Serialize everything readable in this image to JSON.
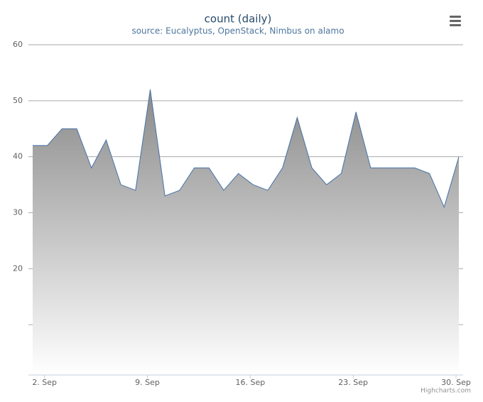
{
  "chart_data": {
    "type": "area",
    "title": "count (daily)",
    "subtitle": "source: Eucalyptus, OpenStack, Nimbus on alamo",
    "credit": "Highcharts.com",
    "categories": [
      null,
      "2. Sep",
      null,
      null,
      null,
      null,
      null,
      null,
      "9. Sep",
      null,
      null,
      null,
      null,
      null,
      null,
      "16. Sep",
      null,
      null,
      null,
      null,
      null,
      null,
      "23. Sep",
      null,
      null,
      null,
      null,
      null,
      null,
      "30. Sep"
    ],
    "values": [
      42,
      42,
      45,
      45,
      38,
      43,
      35,
      34,
      52,
      33,
      34,
      38,
      38,
      34,
      37,
      35,
      34,
      38,
      47,
      38,
      35,
      37,
      48,
      38,
      38,
      38,
      38,
      37,
      31,
      40
    ],
    "color": "#4572a7",
    "ylim": [
      1,
      60
    ],
    "yticks": [
      {
        "value": 10,
        "label": null
      },
      20,
      30,
      40,
      50,
      60
    ],
    "grid": true
  }
}
